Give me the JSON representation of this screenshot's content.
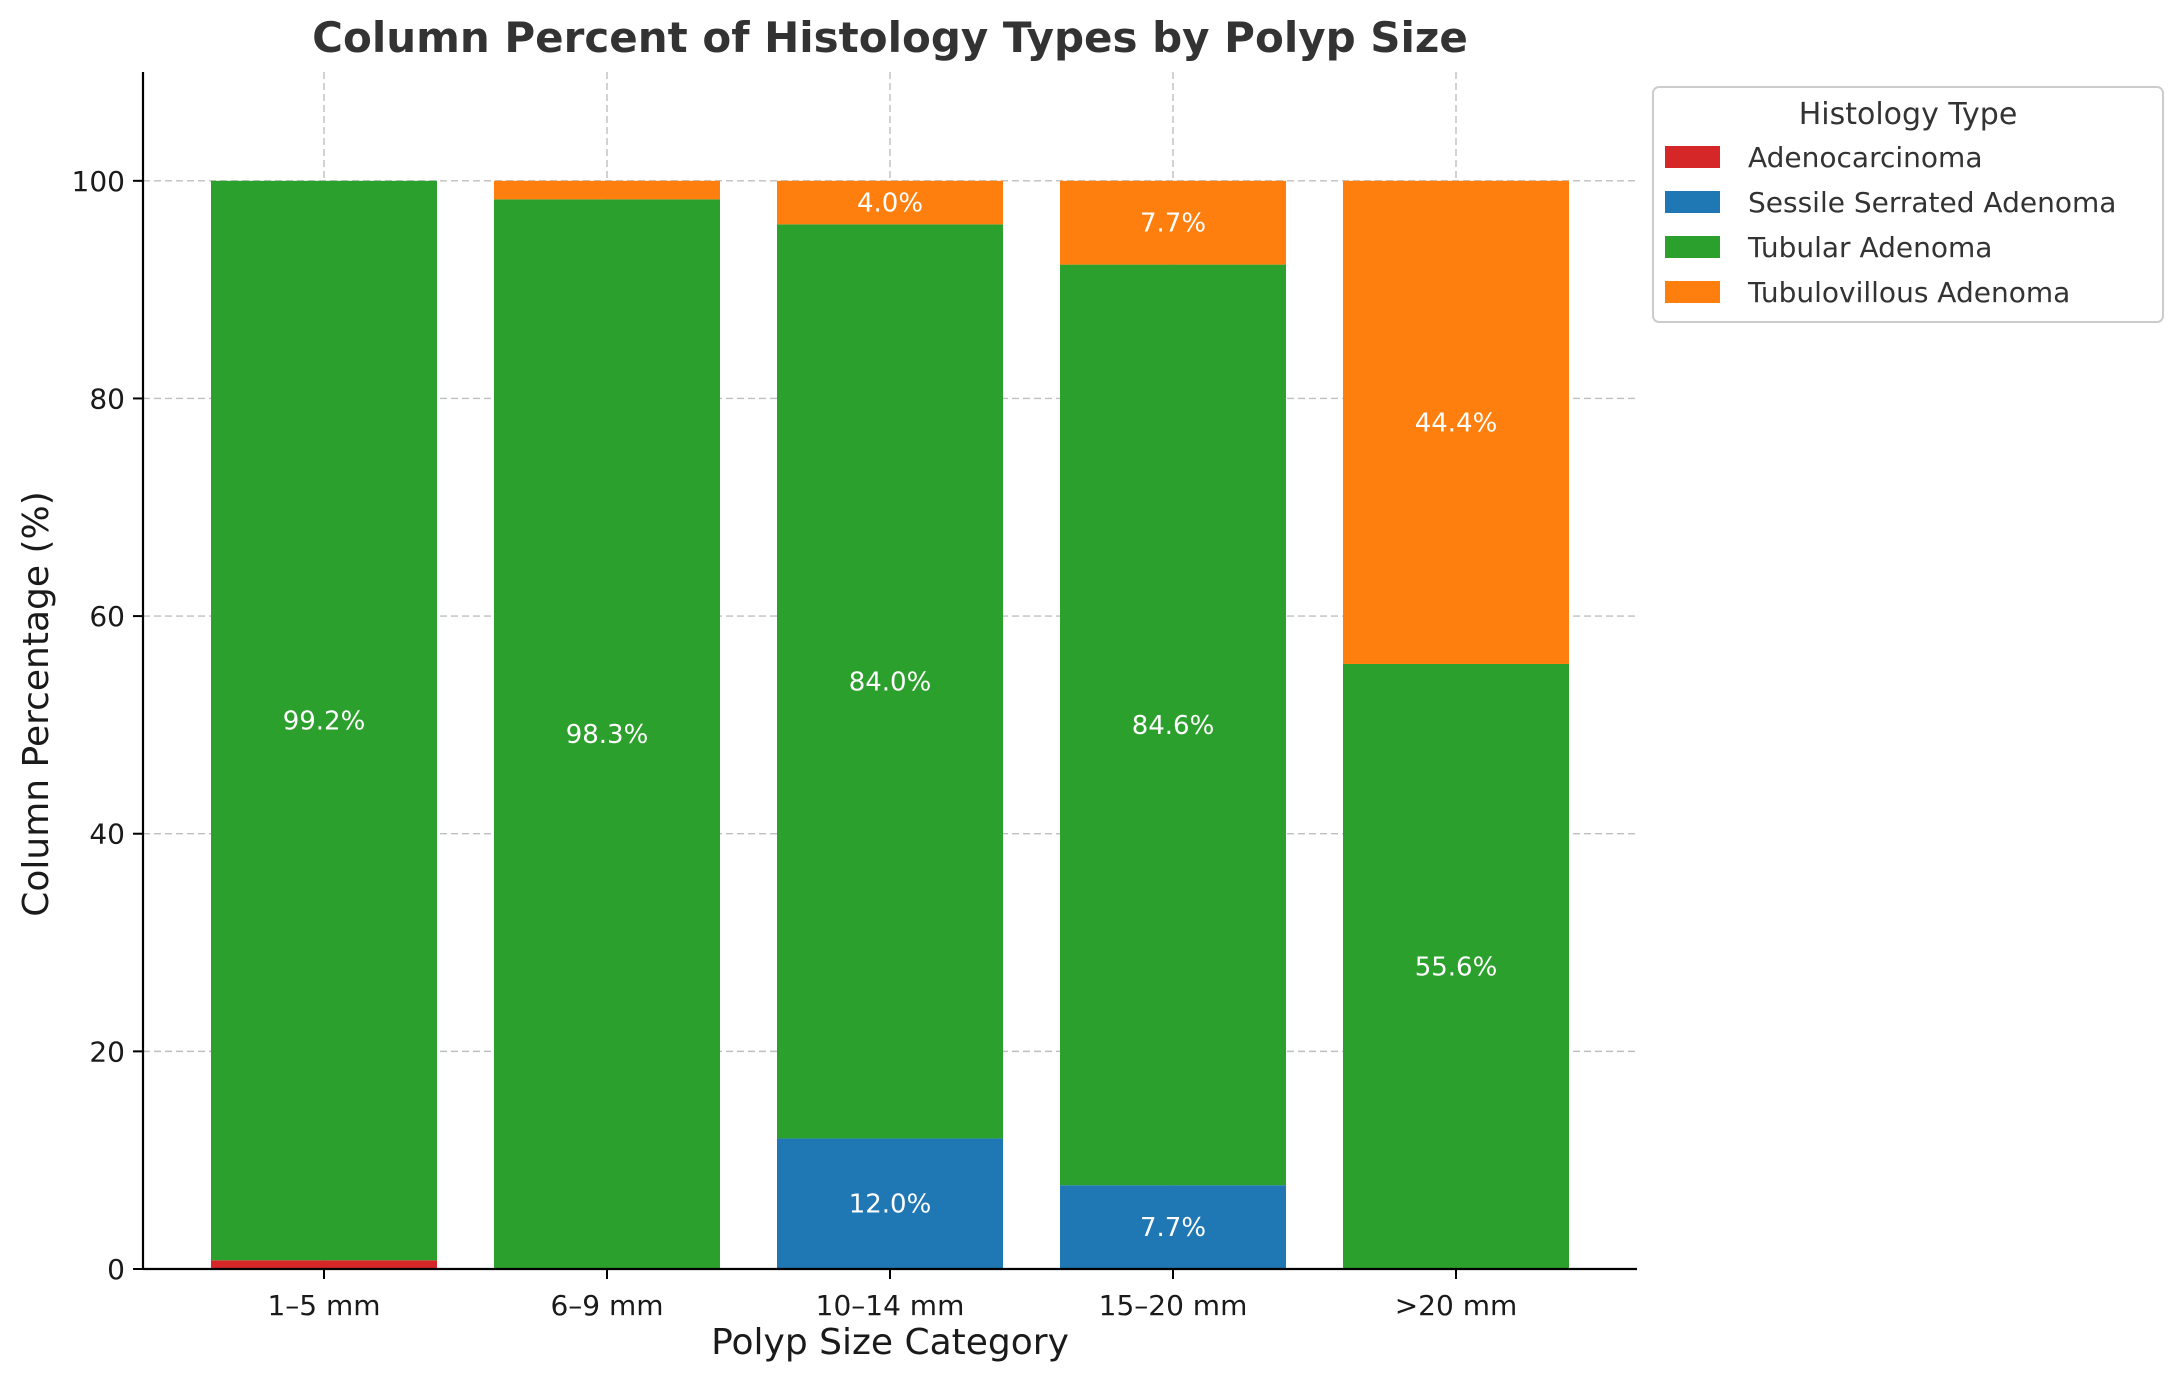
{
  "chart_data": {
    "type": "bar",
    "stacked": true,
    "title": "Column Percent of Histology Types by Polyp Size",
    "xlabel": "Polyp Size Category",
    "ylabel": "Column Percentage (%)",
    "ylim": [
      0,
      110
    ],
    "yticks": [
      0,
      20,
      40,
      60,
      80,
      100
    ],
    "grid": true,
    "legend_placement": "outside-top-right",
    "legend_title": "Histology Type",
    "categories": [
      "1–5 mm",
      "6–9 mm",
      "10–14 mm",
      "15–20 mm",
      ">20 mm"
    ],
    "series": [
      {
        "name": "Adenocarcinoma",
        "color": "#d62728",
        "values": [
          0.8,
          0,
          0,
          0,
          0
        ],
        "labels": [
          "",
          "",
          "",
          "",
          ""
        ]
      },
      {
        "name": "Sessile Serrated Adenoma",
        "color": "#1f77b4",
        "values": [
          0,
          0,
          12.0,
          7.7,
          0
        ],
        "labels": [
          "",
          "",
          "12.0%",
          "7.7%",
          ""
        ]
      },
      {
        "name": "Tubular Adenoma",
        "color": "#2ca02c",
        "values": [
          99.2,
          98.3,
          84.0,
          84.6,
          55.6
        ],
        "labels": [
          "99.2%",
          "98.3%",
          "84.0%",
          "84.6%",
          "55.6%"
        ]
      },
      {
        "name": "Tubulovillous Adenoma",
        "color": "#ff7f0e",
        "values": [
          0,
          1.7,
          4.0,
          7.7,
          44.4
        ],
        "labels": [
          "",
          "",
          "4.0%",
          "7.7%",
          "44.4%"
        ]
      }
    ]
  }
}
